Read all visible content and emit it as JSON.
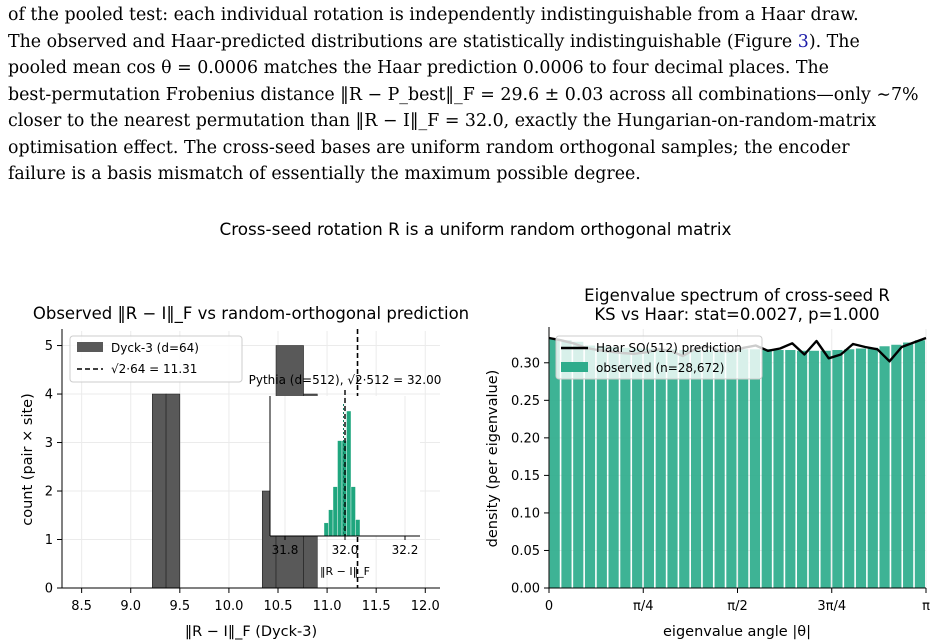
{
  "paragraph": {
    "lines": [
      "of the pooled test: each individual rotation is independently indistinguishable from a Haar draw.",
      "The observed and Haar-predicted distributions are statistically indistinguishable (Figure 3). The",
      "pooled mean cos θ = 0.0006 matches the Haar prediction 0.0006 to four decimal places. The",
      "best-permutation Frobenius distance ‖R − P_best‖_F = 29.6 ± 0.03 across all combinations—only ∼7%",
      "closer to the nearest permutation than ‖R − I‖_F = 32.0, exactly the Hungarian-on-random-matrix",
      "optimisation effect. The cross-seed bases are uniform random orthogonal samples; the encoder",
      "failure is a basis mismatch of essentially the maximum possible degree."
    ],
    "figure_ref": "3"
  },
  "figure": {
    "suptitle": "Cross-seed rotation R is a uniform random orthogonal matrix"
  },
  "chart_data": [
    {
      "type": "bar",
      "title": "Observed ‖R − I‖_F vs random-orthogonal prediction",
      "xlabel": "‖R − I‖_F  (Dyck-3)",
      "ylabel": "count (pair × site)",
      "xlim": [
        8.3,
        12.15
      ],
      "ylim": [
        0,
        5.3
      ],
      "xticks": [
        "8.5",
        "9.0",
        "9.5",
        "10.0",
        "10.5",
        "11.0",
        "11.5",
        "12.0"
      ],
      "yticks": [
        "0",
        "1",
        "2",
        "3",
        "4",
        "5"
      ],
      "bins": [
        {
          "x0": 9.22,
          "x1": 9.36,
          "count": 4
        },
        {
          "x0": 9.36,
          "x1": 9.5,
          "count": 4
        },
        {
          "x0": 10.34,
          "x1": 10.48,
          "count": 2
        },
        {
          "x0": 10.48,
          "x1": 10.76,
          "count": 5
        },
        {
          "x0": 10.76,
          "x1": 10.9,
          "count": 4
        }
      ],
      "reference_line": {
        "x": 11.31,
        "label": "√2·64 = 11.31"
      },
      "legend": [
        {
          "label": "Dyck-3 (d=64)",
          "color": "#595959"
        },
        {
          "label": "√2·64 = 11.31",
          "style": "dashed"
        }
      ],
      "legend_position": "upper-left",
      "grid": true,
      "inset": {
        "title": "Pythia (d=512), √2·512 = 32.00",
        "xlabel": "‖R − I‖_F",
        "xlim": [
          31.75,
          32.25
        ],
        "xticks": [
          "31.8",
          "32.0",
          "32.2"
        ],
        "reference_line": {
          "x": 32.0
        },
        "mean_line": {
          "x": 31.995
        },
        "bins": [
          {
            "x0": 31.93,
            "x1": 31.945,
            "count": 4
          },
          {
            "x0": 31.945,
            "x1": 31.96,
            "count": 8
          },
          {
            "x0": 31.96,
            "x1": 31.975,
            "count": 15
          },
          {
            "x0": 31.975,
            "x1": 31.99,
            "count": 29
          },
          {
            "x0": 31.99,
            "x1": 32.005,
            "count": 29
          },
          {
            "x0": 32.005,
            "x1": 32.02,
            "count": 38
          },
          {
            "x0": 32.02,
            "x1": 32.035,
            "count": 15
          },
          {
            "x0": 32.035,
            "x1": 32.05,
            "count": 5
          }
        ]
      }
    },
    {
      "type": "bar",
      "title": "Eigenvalue spectrum of cross-seed R",
      "subtitle": "KS vs Haar: stat=0.0027, p=1.000",
      "xlabel": "eigenvalue angle  |θ|",
      "ylabel": "density (per eigenvalue)",
      "xlim": [
        0,
        3.14159
      ],
      "ylim": [
        0,
        0.345
      ],
      "xticks": [
        "0",
        "π/4",
        "π/2",
        "3π/4",
        "π"
      ],
      "yticks": [
        "0.00",
        "0.05",
        "0.10",
        "0.15",
        "0.20",
        "0.25",
        "0.30"
      ],
      "observed": [
        0.332,
        0.33,
        0.328,
        0.323,
        0.322,
        0.321,
        0.32,
        0.319,
        0.319,
        0.318,
        0.318,
        0.317,
        0.317,
        0.317,
        0.318,
        0.318,
        0.318,
        0.318,
        0.318,
        0.317,
        0.317,
        0.316,
        0.316,
        0.316,
        0.317,
        0.318,
        0.319,
        0.32,
        0.322,
        0.324,
        0.327,
        0.33
      ],
      "haar_prediction": [
        0.333,
        0.33,
        0.326,
        0.32,
        0.317,
        0.315,
        0.313,
        0.312,
        0.314,
        0.318,
        0.316,
        0.309,
        0.318,
        0.322,
        0.316,
        0.315,
        0.32,
        0.323,
        0.316,
        0.319,
        0.326,
        0.311,
        0.329,
        0.306,
        0.311,
        0.325,
        0.321,
        0.318,
        0.302,
        0.321,
        0.327,
        0.333
      ],
      "legend": [
        {
          "label": "Haar SO(512) prediction",
          "color": "#000000"
        },
        {
          "label": "observed (n=28,672)",
          "color": "#2eac8c"
        }
      ],
      "legend_position": "upper-left",
      "grid": true
    }
  ]
}
